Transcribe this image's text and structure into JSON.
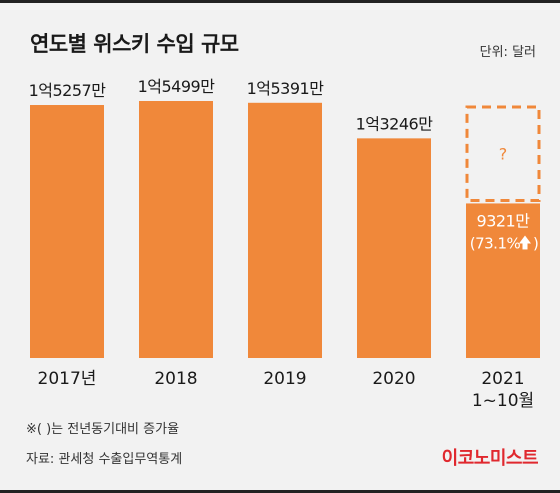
{
  "header": {
    "title": "연도별 위스키 수입 규모",
    "unit": "단위: 달러"
  },
  "footer": {
    "footnote": "※( )는 전년동기대비 증가율",
    "source": "자료: 관세청 수출입무역통계",
    "logo": "이코노미스트"
  },
  "colors": {
    "bar": "#f0883a",
    "background": "#f2f2f2",
    "text": "#1a1a1a",
    "placeholder_border": "#f0883a",
    "logo": "#e0282e"
  },
  "chart_data": {
    "type": "bar",
    "title": "연도별 위스키 수입 규모",
    "unit": "단위: 달러",
    "categories": [
      "2017년",
      "2018",
      "2019",
      "2020",
      "2021\n1~10월"
    ],
    "values": [
      152570000,
      154990000,
      153910000,
      132460000,
      93210000
    ],
    "value_labels": [
      "1억5257만",
      "1억5499만",
      "1억5391만",
      "1억3246만",
      "9321만"
    ],
    "annotations": [
      {
        "category": "2021\n1~10월",
        "text": "(73.1%",
        "arrow": "up",
        "closing": ")"
      },
      {
        "category": "2021\n1~10월",
        "placeholder": "?"
      }
    ],
    "grid": false,
    "legend": "none"
  }
}
